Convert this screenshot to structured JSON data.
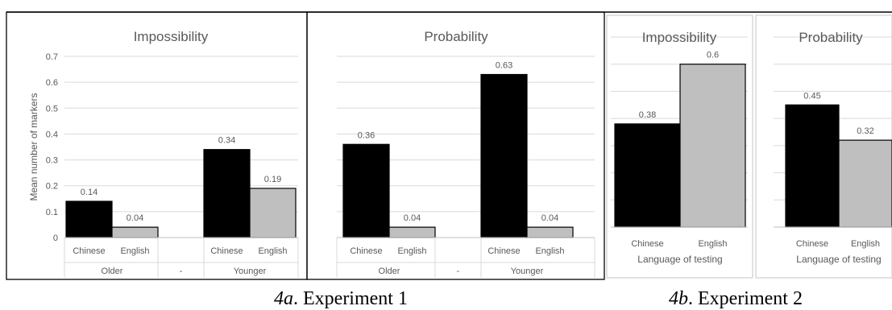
{
  "captions": {
    "left": {
      "label": "4a",
      "rest": ". Experiment 1"
    },
    "right": {
      "label": "4b",
      "rest": ". Experiment 2"
    }
  },
  "colors": {
    "chinese": "#000000",
    "english": "#bfbfbf",
    "grid": "#d9d9d9",
    "text": "#595959"
  },
  "chart_data": [
    {
      "type": "bar",
      "title": "Impossibility",
      "ylabel": "Mean number of markers",
      "ylim": [
        0,
        0.7
      ],
      "yticks": [
        "0",
        "0.1",
        "0.2",
        "0.3",
        "0.4",
        "0.5",
        "0.6",
        "0.7"
      ],
      "groups": [
        "Older",
        "-",
        "Younger"
      ],
      "categories": [
        "Chinese",
        "English",
        "",
        "Chinese",
        "English"
      ],
      "series": [
        {
          "values": [
            0.14,
            0.04,
            null,
            0.34,
            0.19
          ]
        }
      ],
      "data_labels": [
        "0.14",
        "0.04",
        "",
        "0.34",
        "0.19"
      ]
    },
    {
      "type": "bar",
      "title": "Probability",
      "ylim": [
        0,
        0.7
      ],
      "groups": [
        "Older",
        "-",
        "Younger"
      ],
      "categories": [
        "Chinese",
        "English",
        "",
        "Chinese",
        "English"
      ],
      "series": [
        {
          "values": [
            0.36,
            0.04,
            null,
            0.63,
            0.04
          ]
        }
      ],
      "data_labels": [
        "0.36",
        "0.04",
        "",
        "0.63",
        "0.04"
      ]
    },
    {
      "type": "bar",
      "title": "Impossibility",
      "xlabel": "Language of testing",
      "ylim": [
        0,
        0.7
      ],
      "categories": [
        "Chinese",
        "English"
      ],
      "series": [
        {
          "values": [
            0.38,
            0.6
          ]
        }
      ],
      "data_labels": [
        "0.38",
        "0.6"
      ]
    },
    {
      "type": "bar",
      "title": "Probability",
      "xlabel": "Language of testing",
      "ylim": [
        0,
        0.7
      ],
      "categories": [
        "Chinese",
        "English"
      ],
      "series": [
        {
          "values": [
            0.45,
            0.32
          ]
        }
      ],
      "data_labels": [
        "0.45",
        "0.32"
      ]
    }
  ]
}
